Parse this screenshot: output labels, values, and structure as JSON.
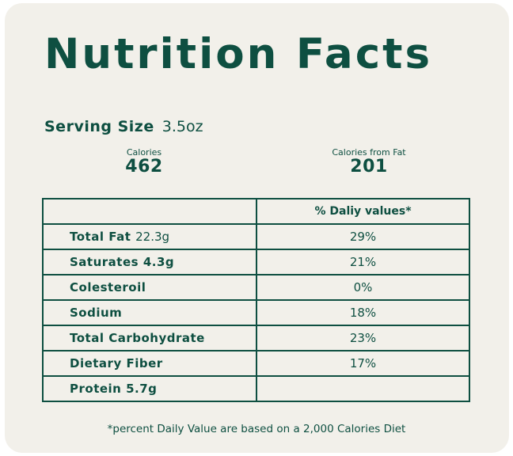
{
  "title": "Nutrition Facts",
  "serving": {
    "label": "Serving Size",
    "value": "3.5oz"
  },
  "calories": {
    "label": "Calories",
    "value": "462"
  },
  "calories_from_fat": {
    "label": "Calories from Fat",
    "value": "201"
  },
  "table": {
    "header": {
      "name": "",
      "daily": "% Daliy values*"
    },
    "rows": [
      {
        "name": "Total Fat",
        "amount": "22.3g",
        "daily": "29%"
      },
      {
        "name": "Saturates",
        "amount": "4.3g",
        "daily": "21%"
      },
      {
        "name": "Colesteroil",
        "amount": "",
        "daily": "0%"
      },
      {
        "name": "Sodium",
        "amount": "",
        "daily": "18%"
      },
      {
        "name": "Total Carbohydrate",
        "amount": "",
        "daily": "23%"
      },
      {
        "name": "Dietary Fiber",
        "amount": "",
        "daily": "17%"
      },
      {
        "name": "Protein 5.7g",
        "amount": "",
        "daily": ""
      }
    ]
  },
  "footnote": "*percent Daily Value are based on a 2,000 Calories Diet",
  "colors": {
    "primary": "#0e4f41",
    "card_background": "#f2f0ea"
  }
}
